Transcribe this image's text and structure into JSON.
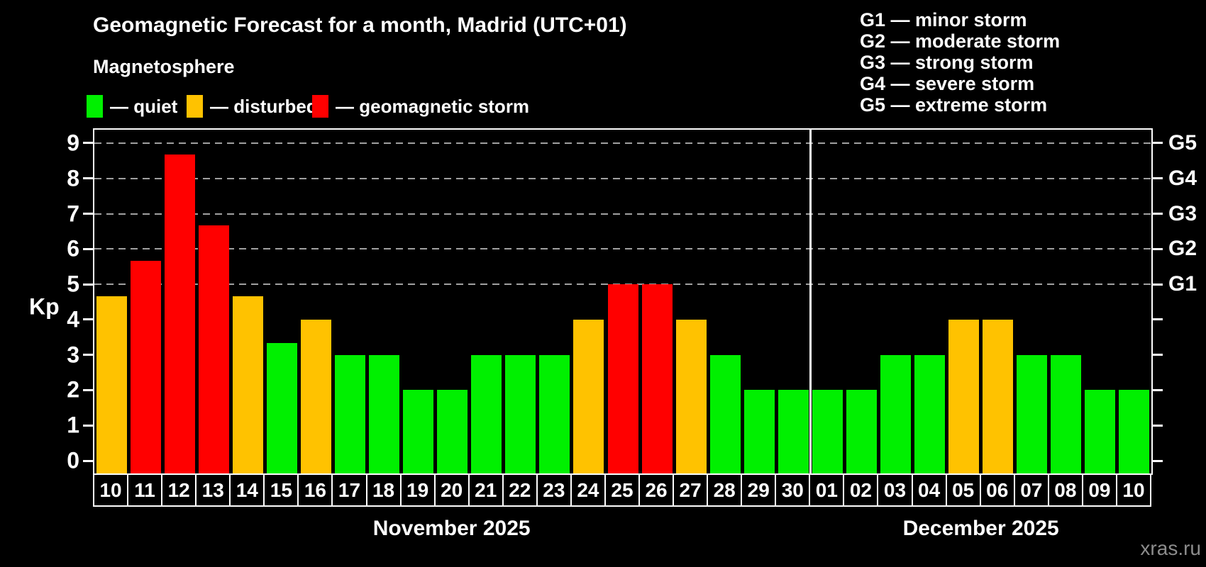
{
  "title": "Geomagnetic Forecast for a month, Madrid (UTC+01)",
  "subtitle": "Magnetosphere",
  "watermark": "xras.ru",
  "y_axis": {
    "label": "Kp",
    "ticks": [
      0,
      1,
      2,
      3,
      4,
      5,
      6,
      7,
      8,
      9
    ]
  },
  "right_axis": {
    "labels": [
      {
        "text": "G1",
        "kp": 5
      },
      {
        "text": "G2",
        "kp": 6
      },
      {
        "text": "G3",
        "kp": 7
      },
      {
        "text": "G4",
        "kp": 8
      },
      {
        "text": "G5",
        "kp": 9
      }
    ]
  },
  "legend": {
    "items": [
      {
        "key": "quiet",
        "label": "— quiet",
        "color": "#00f000"
      },
      {
        "key": "disturbed",
        "label": "— disturbed",
        "color": "#ffc200"
      },
      {
        "key": "storm",
        "label": "— geomagnetic storm",
        "color": "#ff0000"
      }
    ]
  },
  "g_scale_legend": [
    "G1 — minor storm",
    "G2 — moderate storm",
    "G3 — strong storm",
    "G4 — severe storm",
    "G5 — extreme storm"
  ],
  "chart_data": {
    "type": "bar",
    "title": "Geomagnetic Forecast for a month, Madrid (UTC+01)",
    "xlabel": "",
    "ylabel": "Kp",
    "ylim": [
      0,
      9
    ],
    "grid": "dashed horizontal lines at Kp 5,6,7,8,9 (G1–G5 levels)",
    "legend_position": "top-left",
    "status_colors": {
      "quiet": "#00f000",
      "disturbed": "#ffc200",
      "storm": "#ff0000"
    },
    "g_level_kp": [
      5,
      6,
      7,
      8,
      9
    ],
    "months": [
      {
        "label": "November 2025",
        "days": [
          {
            "day": "10",
            "kp": 4.67,
            "status": "disturbed"
          },
          {
            "day": "11",
            "kp": 5.67,
            "status": "storm"
          },
          {
            "day": "12",
            "kp": 8.67,
            "status": "storm"
          },
          {
            "day": "13",
            "kp": 6.67,
            "status": "storm"
          },
          {
            "day": "14",
            "kp": 4.67,
            "status": "disturbed"
          },
          {
            "day": "15",
            "kp": 3.33,
            "status": "quiet"
          },
          {
            "day": "16",
            "kp": 4.0,
            "status": "disturbed"
          },
          {
            "day": "17",
            "kp": 3.0,
            "status": "quiet"
          },
          {
            "day": "18",
            "kp": 3.0,
            "status": "quiet"
          },
          {
            "day": "19",
            "kp": 2.0,
            "status": "quiet"
          },
          {
            "day": "20",
            "kp": 2.0,
            "status": "quiet"
          },
          {
            "day": "21",
            "kp": 3.0,
            "status": "quiet"
          },
          {
            "day": "22",
            "kp": 3.0,
            "status": "quiet"
          },
          {
            "day": "23",
            "kp": 3.0,
            "status": "quiet"
          },
          {
            "day": "24",
            "kp": 4.0,
            "status": "disturbed"
          },
          {
            "day": "25",
            "kp": 5.0,
            "status": "storm"
          },
          {
            "day": "26",
            "kp": 5.0,
            "status": "storm"
          },
          {
            "day": "27",
            "kp": 4.0,
            "status": "disturbed"
          },
          {
            "day": "28",
            "kp": 3.0,
            "status": "quiet"
          },
          {
            "day": "29",
            "kp": 2.0,
            "status": "quiet"
          },
          {
            "day": "30",
            "kp": 2.0,
            "status": "quiet"
          }
        ]
      },
      {
        "label": "December 2025",
        "days": [
          {
            "day": "01",
            "kp": 2.0,
            "status": "quiet"
          },
          {
            "day": "02",
            "kp": 2.0,
            "status": "quiet"
          },
          {
            "day": "03",
            "kp": 3.0,
            "status": "quiet"
          },
          {
            "day": "04",
            "kp": 3.0,
            "status": "quiet"
          },
          {
            "day": "05",
            "kp": 4.0,
            "status": "disturbed"
          },
          {
            "day": "06",
            "kp": 4.0,
            "status": "disturbed"
          },
          {
            "day": "07",
            "kp": 3.0,
            "status": "quiet"
          },
          {
            "day": "08",
            "kp": 3.0,
            "status": "quiet"
          },
          {
            "day": "09",
            "kp": 2.0,
            "status": "quiet"
          },
          {
            "day": "10",
            "kp": 2.0,
            "status": "quiet"
          }
        ]
      }
    ]
  }
}
